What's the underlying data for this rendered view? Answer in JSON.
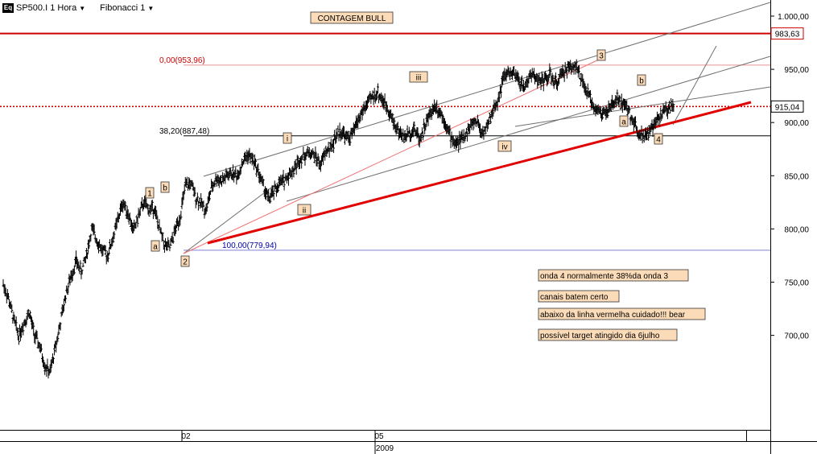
{
  "toolbar": {
    "symbol_label": "SP500.I 1 Hora",
    "tool_label": "Fibonacci 1"
  },
  "chart_data": {
    "type": "candlestick",
    "symbol": "SP500.I",
    "timeframe": "1 Hora",
    "y_axis": {
      "ticks": [
        "1.000,00",
        "950,00",
        "900,00",
        "850,00",
        "800,00",
        "750,00",
        "700,00"
      ],
      "ylim": [
        640,
        1010
      ]
    },
    "x_axis": {
      "ticks": [
        "02",
        "05"
      ],
      "year_label": "2009"
    },
    "price_levels": [
      {
        "name": "resistance",
        "value": 983.63,
        "label": "983,63",
        "color": "#cc0000"
      },
      {
        "name": "current",
        "value": 915.04,
        "label": "915,04",
        "color": "#cc0000"
      }
    ],
    "fibonacci": [
      {
        "label": "0,00(953,96)",
        "value": 953.96,
        "color": "#cc0000"
      },
      {
        "label": "38,20(887,48)",
        "value": 887.48,
        "color": "#000000"
      },
      {
        "label": "100,00(779,94)",
        "value": 779.94,
        "color": "#0000aa"
      }
    ],
    "wave_labels": [
      "1",
      "b",
      "a",
      "2",
      "i",
      "ii",
      "iii",
      "iv",
      "3",
      "b",
      "a",
      "4"
    ],
    "price_path": [
      [
        0,
        748
      ],
      [
        1,
        735
      ],
      [
        2,
        715
      ],
      [
        3,
        700
      ],
      [
        4,
        712
      ],
      [
        5,
        722
      ],
      [
        6,
        700
      ],
      [
        7,
        690
      ],
      [
        8,
        672
      ],
      [
        9,
        665
      ],
      [
        10,
        688
      ],
      [
        11,
        712
      ],
      [
        12,
        738
      ],
      [
        13,
        755
      ],
      [
        14,
        770
      ],
      [
        15,
        760
      ],
      [
        16,
        775
      ],
      [
        17,
        800
      ],
      [
        18,
        790
      ],
      [
        19,
        780
      ],
      [
        20,
        775
      ],
      [
        21,
        790
      ],
      [
        22,
        808
      ],
      [
        23,
        825
      ],
      [
        24,
        815
      ],
      [
        25,
        798
      ],
      [
        26,
        812
      ],
      [
        27,
        825
      ],
      [
        28,
        818
      ],
      [
        29,
        820
      ],
      [
        30,
        800
      ],
      [
        31,
        785
      ],
      [
        32,
        782
      ],
      [
        33,
        798
      ],
      [
        34,
        812
      ],
      [
        35,
        840
      ],
      [
        36,
        843
      ],
      [
        37,
        830
      ],
      [
        38,
        824
      ],
      [
        39,
        818
      ],
      [
        40,
        838
      ],
      [
        41,
        848
      ],
      [
        42,
        845
      ],
      [
        43,
        850
      ],
      [
        44,
        852
      ],
      [
        45,
        850
      ],
      [
        46,
        863
      ],
      [
        47,
        870
      ],
      [
        48,
        865
      ],
      [
        49,
        854
      ],
      [
        50,
        840
      ],
      [
        51,
        828
      ],
      [
        52,
        834
      ],
      [
        53,
        842
      ],
      [
        54,
        846
      ],
      [
        55,
        852
      ],
      [
        56,
        857
      ],
      [
        57,
        866
      ],
      [
        58,
        870
      ],
      [
        59,
        872
      ],
      [
        60,
        868
      ],
      [
        61,
        860
      ],
      [
        62,
        873
      ],
      [
        63,
        876
      ],
      [
        64,
        888
      ],
      [
        65,
        892
      ],
      [
        66,
        885
      ],
      [
        67,
        888
      ],
      [
        68,
        900
      ],
      [
        69,
        910
      ],
      [
        70,
        918
      ],
      [
        71,
        924
      ],
      [
        72,
        928
      ],
      [
        73,
        920
      ],
      [
        74,
        913
      ],
      [
        75,
        900
      ],
      [
        76,
        892
      ],
      [
        77,
        886
      ],
      [
        78,
        890
      ],
      [
        79,
        894
      ],
      [
        80,
        885
      ],
      [
        81,
        896
      ],
      [
        82,
        908
      ],
      [
        83,
        916
      ],
      [
        84,
        910
      ],
      [
        85,
        900
      ],
      [
        86,
        886
      ],
      [
        87,
        880
      ],
      [
        88,
        884
      ],
      [
        89,
        890
      ],
      [
        90,
        898
      ],
      [
        91,
        902
      ],
      [
        92,
        890
      ],
      [
        93,
        896
      ],
      [
        94,
        910
      ],
      [
        95,
        920
      ],
      [
        96,
        940
      ],
      [
        97,
        947
      ],
      [
        98,
        945
      ],
      [
        99,
        940
      ],
      [
        100,
        932
      ],
      [
        101,
        942
      ],
      [
        102,
        946
      ],
      [
        103,
        938
      ],
      [
        104,
        940
      ],
      [
        105,
        945
      ],
      [
        106,
        936
      ],
      [
        107,
        942
      ],
      [
        108,
        950
      ],
      [
        109,
        952
      ],
      [
        110,
        955
      ],
      [
        111,
        940
      ],
      [
        112,
        930
      ],
      [
        113,
        920
      ],
      [
        114,
        912
      ],
      [
        115,
        908
      ],
      [
        116,
        910
      ],
      [
        117,
        916
      ],
      [
        118,
        922
      ],
      [
        119,
        918
      ],
      [
        120,
        912
      ],
      [
        121,
        902
      ],
      [
        122,
        892
      ],
      [
        123,
        888
      ],
      [
        124,
        890
      ],
      [
        125,
        896
      ],
      [
        126,
        905
      ],
      [
        127,
        910
      ],
      [
        128,
        914
      ],
      [
        129,
        915.04
      ]
    ]
  },
  "chart_annotations": {
    "title_box": "CONTAGEM BULL",
    "notes": [
      "onda 4 normalmente 38%da onda 3",
      "canais batem certo",
      "abaixo da linha vermelha cuidado!!! bear",
      "possível target atingido dia 6julho"
    ]
  },
  "colors": {
    "candle": "#000000",
    "trend_red": "#e00000",
    "label_fill": "#fcdcb8",
    "label_stroke": "#333333",
    "grid_gray": "#808080",
    "fib_blue": "#0000cc"
  }
}
